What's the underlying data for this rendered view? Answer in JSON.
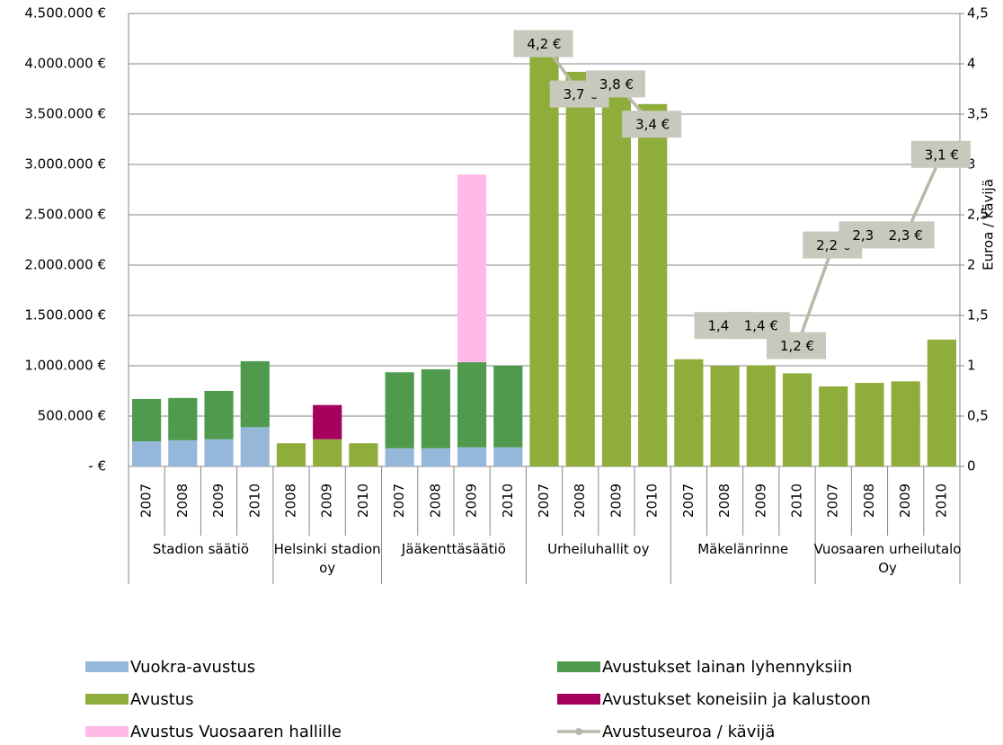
{
  "chart_data": {
    "type": "bar",
    "stacked": true,
    "groups": [
      {
        "name": "Stadion säätiö",
        "categories": [
          "2007",
          "2008",
          "2009",
          "2010"
        ]
      },
      {
        "name": "Helsinki stadion oy",
        "categories": [
          "2008",
          "2009",
          "2010"
        ]
      },
      {
        "name": "Jääkenttäsäätiö",
        "categories": [
          "2007",
          "2008",
          "2009",
          "2010"
        ]
      },
      {
        "name": "Urheiluhallit oy",
        "categories": [
          "2007",
          "2008",
          "2009",
          "2010"
        ]
      },
      {
        "name": "Mäkelänrinne",
        "categories": [
          "2007",
          "2008",
          "2009",
          "2010"
        ]
      },
      {
        "name": "Vuosaaren urheilutalo Oy",
        "categories": [
          "2007",
          "2008",
          "2009",
          "2010"
        ]
      }
    ],
    "series": [
      {
        "name": "Vuokra-avustus",
        "color": "#95b8da",
        "values": [
          250000,
          260000,
          270000,
          390000,
          null,
          null,
          null,
          180000,
          180000,
          190000,
          190000,
          null,
          null,
          null,
          null,
          null,
          null,
          null,
          null,
          null,
          null,
          null,
          null
        ]
      },
      {
        "name": "Avustukset lainan lyhennyksiin",
        "color": "#4f9a4c",
        "values": [
          420000,
          420000,
          480000,
          655000,
          null,
          null,
          null,
          755000,
          785000,
          845000,
          810000,
          null,
          null,
          null,
          null,
          null,
          null,
          null,
          null,
          null,
          null,
          null,
          null
        ]
      },
      {
        "name": "Avustus",
        "color": "#8fad3b",
        "values": [
          null,
          null,
          null,
          null,
          230000,
          270000,
          230000,
          null,
          null,
          null,
          null,
          4100000,
          3920000,
          3930000,
          3600000,
          1065000,
          1000000,
          1005000,
          925000,
          795000,
          830000,
          845000,
          1260000
        ]
      },
      {
        "name": "Avustukset koneisiin ja kalustoon",
        "color": "#a6005f",
        "values": [
          null,
          null,
          null,
          null,
          null,
          340000,
          null,
          null,
          null,
          null,
          null,
          null,
          null,
          null,
          null,
          null,
          null,
          null,
          null,
          null,
          null,
          null,
          null
        ]
      },
      {
        "name": "Avustus Vuosaaren hallille",
        "color": "#ffbbe6",
        "values": [
          null,
          null,
          null,
          null,
          null,
          null,
          null,
          null,
          null,
          1865000,
          null,
          null,
          null,
          null,
          null,
          null,
          null,
          null,
          null,
          null,
          null,
          null,
          null
        ]
      },
      {
        "name": "Avustuseuroa / kävijä",
        "color": "#b8b8aa",
        "type": "line",
        "axis": "y2",
        "values": [
          null,
          null,
          null,
          null,
          null,
          null,
          null,
          null,
          null,
          null,
          null,
          4.2,
          3.7,
          3.8,
          3.4,
          null,
          1.4,
          1.4,
          1.2,
          2.2,
          2.3,
          2.3,
          3.1
        ],
        "value_labels": [
          null,
          null,
          null,
          null,
          null,
          null,
          null,
          null,
          null,
          null,
          null,
          "4,2 €",
          "3,7 €",
          "3,8 €",
          "3,4 €",
          null,
          "1,4 €",
          "1,4 €",
          "1,2 €",
          "2,2 €",
          "2,3 €",
          "2,3 €",
          "3,1 €"
        ]
      }
    ],
    "ylim": [
      0,
      4500000
    ],
    "yticks": [
      {
        "value": 0,
        "label": "-   €"
      },
      {
        "value": 500000,
        "label": "500.000 €"
      },
      {
        "value": 1000000,
        "label": "1.000.000 €"
      },
      {
        "value": 1500000,
        "label": "1.500.000 €"
      },
      {
        "value": 2000000,
        "label": "2.000.000 €"
      },
      {
        "value": 2500000,
        "label": "2.500.000 €"
      },
      {
        "value": 3000000,
        "label": "3.000.000 €"
      },
      {
        "value": 3500000,
        "label": "3.500.000 €"
      },
      {
        "value": 4000000,
        "label": "4.000.000 €"
      },
      {
        "value": 4500000,
        "label": "4.500.000 €"
      }
    ],
    "y2lim": [
      0,
      4.5
    ],
    "y2ticks": [
      0,
      {
        "value": 0.5,
        "label": "0,5"
      },
      1,
      {
        "value": 1.5,
        "label": "1,5"
      },
      2,
      {
        "value": 2.5,
        "label": "2,5"
      },
      3,
      {
        "value": 3.5,
        "label": "3,5"
      },
      4,
      {
        "value": 4.5,
        "label": "4,5"
      }
    ],
    "y2label": "Euroa / kävijä",
    "grid": true,
    "legend": "bottom"
  }
}
